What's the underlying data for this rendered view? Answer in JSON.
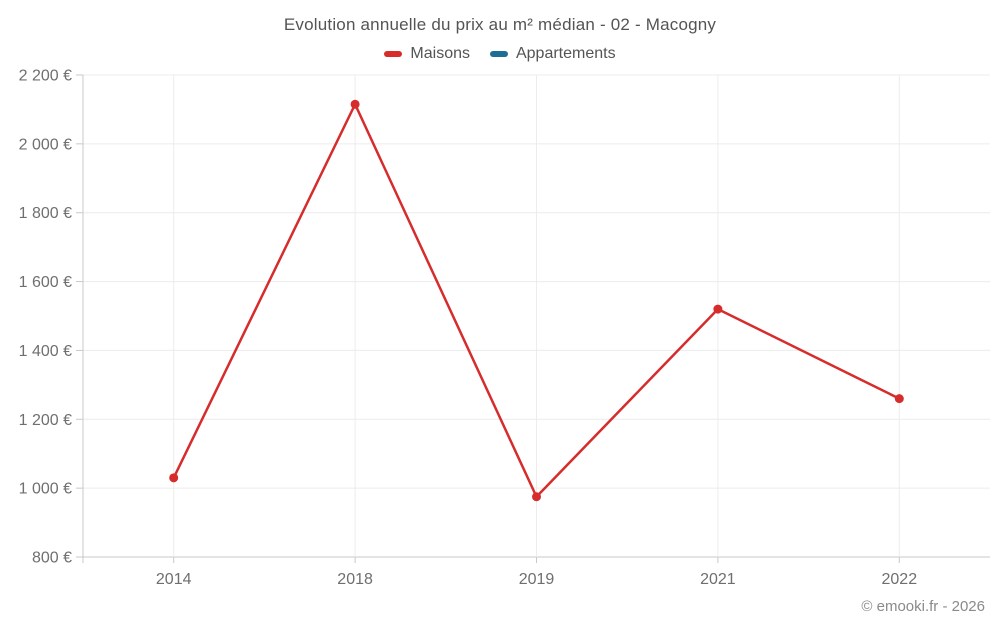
{
  "title": "Evolution annuelle du prix au m² médian - 02 - Macogny",
  "legend": [
    {
      "label": "Maisons",
      "color": "#d62c2c"
    },
    {
      "label": "Appartements",
      "color": "#1c6e96"
    }
  ],
  "footer": {
    "copyright": "© emooki.fr - 2026"
  },
  "colors": {
    "grid": "#ececec",
    "axis": "#c9c9c9",
    "tick_label": "#6f6f6f",
    "title": "#545454",
    "maisons": "#d62c2c",
    "appartements": "#1c6e96"
  },
  "chart_data": {
    "type": "line",
    "title": "Evolution annuelle du prix au m² médian - 02 - Macogny",
    "categories": [
      "2014",
      "2018",
      "2019",
      "2021",
      "2022"
    ],
    "series": [
      {
        "name": "Maisons",
        "color": "#d62c2c",
        "values": [
          1030,
          2115,
          975,
          1520,
          1260
        ]
      },
      {
        "name": "Appartements",
        "color": "#1c6e96",
        "values": []
      }
    ],
    "xlabel": "",
    "ylabel": "",
    "ylim": [
      800,
      2200
    ],
    "y_ticks": [
      800,
      1000,
      1200,
      1400,
      1600,
      1800,
      2000,
      2200
    ],
    "y_tick_labels": [
      "800 €",
      "1 000 €",
      "1 200 €",
      "1 400 €",
      "1 600 €",
      "1 800 €",
      "2 000 €",
      "2 200 €"
    ],
    "grid": true,
    "legend_position": "top",
    "marker_radius": 4.5,
    "line_width": 2.5
  }
}
